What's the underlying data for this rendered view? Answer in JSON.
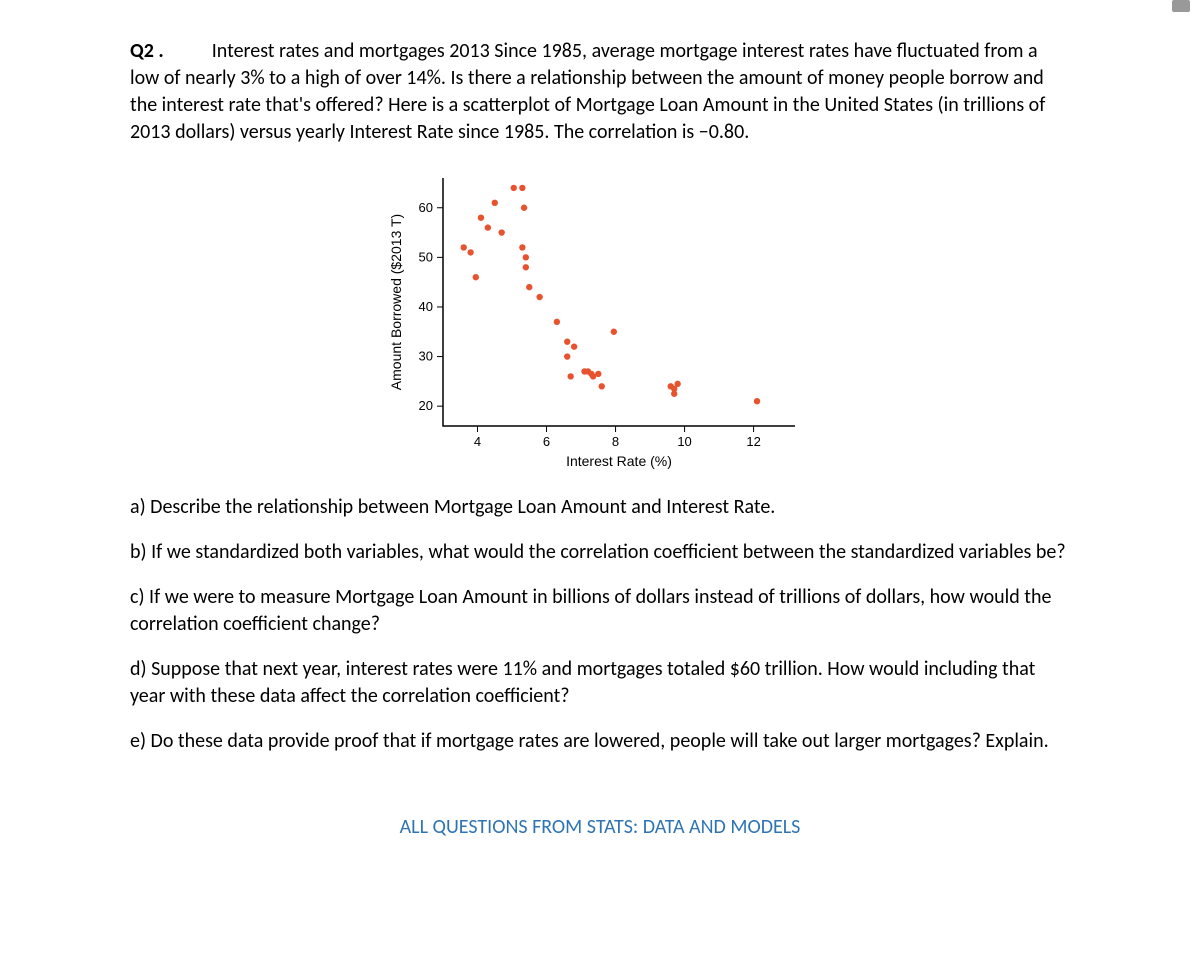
{
  "question": {
    "label": "Q2 .",
    "body": "Interest rates and mortgages 2013 Since 1985, average mortgage interest rates have fluctuated from a low of nearly 3% to a high of over 14%. Is there a relationship between the amount of money people borrow and the interest rate that's offered? Here is a scatterplot of Mortgage Loan Amount in the United States (in trillions of 2013 dollars) versus yearly Interest Rate since 1985. The correlation is −0.80."
  },
  "chart": {
    "type": "scatter",
    "x_label": "Interest Rate (%)",
    "y_label": "Amount Borrowed ($2013 T)",
    "xlim": [
      3,
      13.2
    ],
    "ylim": [
      16,
      66
    ],
    "xticks": [
      4,
      6,
      8,
      10,
      12
    ],
    "yticks": [
      20,
      30,
      40,
      50,
      60
    ],
    "point_color": "#e8532f",
    "point_radius": 3.2,
    "axis_color": "#000000",
    "background_color": "#ffffff",
    "tick_fontsize": 13,
    "label_fontsize": 14,
    "points": [
      [
        3.6,
        52
      ],
      [
        3.8,
        51
      ],
      [
        3.95,
        46
      ],
      [
        4.1,
        58
      ],
      [
        4.3,
        56
      ],
      [
        4.5,
        61
      ],
      [
        4.7,
        55
      ],
      [
        5.05,
        64
      ],
      [
        5.3,
        64
      ],
      [
        5.35,
        60
      ],
      [
        5.3,
        52
      ],
      [
        5.4,
        50
      ],
      [
        5.4,
        48
      ],
      [
        5.5,
        44
      ],
      [
        5.8,
        42
      ],
      [
        6.3,
        37
      ],
      [
        6.6,
        33
      ],
      [
        6.6,
        30
      ],
      [
        6.8,
        32
      ],
      [
        6.7,
        26
      ],
      [
        7.1,
        27
      ],
      [
        7.2,
        27
      ],
      [
        7.3,
        26.5
      ],
      [
        7.35,
        26
      ],
      [
        7.5,
        26.5
      ],
      [
        7.6,
        24
      ],
      [
        7.95,
        35
      ],
      [
        9.6,
        24
      ],
      [
        9.7,
        23.5
      ],
      [
        9.7,
        22.5
      ],
      [
        9.8,
        24.5
      ],
      [
        12.1,
        21
      ]
    ]
  },
  "parts": {
    "a": "a) Describe the relationship between Mortgage Loan Amount and Interest Rate.",
    "b": "b) If we standardized both variables, what would the correlation coefficient between the standardized variables be?",
    "c": "c) If we were to measure Mortgage Loan Amount in billions of dollars instead of trillions of dollars, how would the correlation coefficient change?",
    "d": "d) Suppose that next year, interest rates were 11% and mortgages totaled $60 trillion. How would including that year with these data affect the correlation coefficient?",
    "e": "e) Do these data provide proof that if mortgage rates are lowered, people will take out larger mortgages? Explain."
  },
  "footer": "ALL QUESTIONS FROM STATS: DATA AND MODELS"
}
